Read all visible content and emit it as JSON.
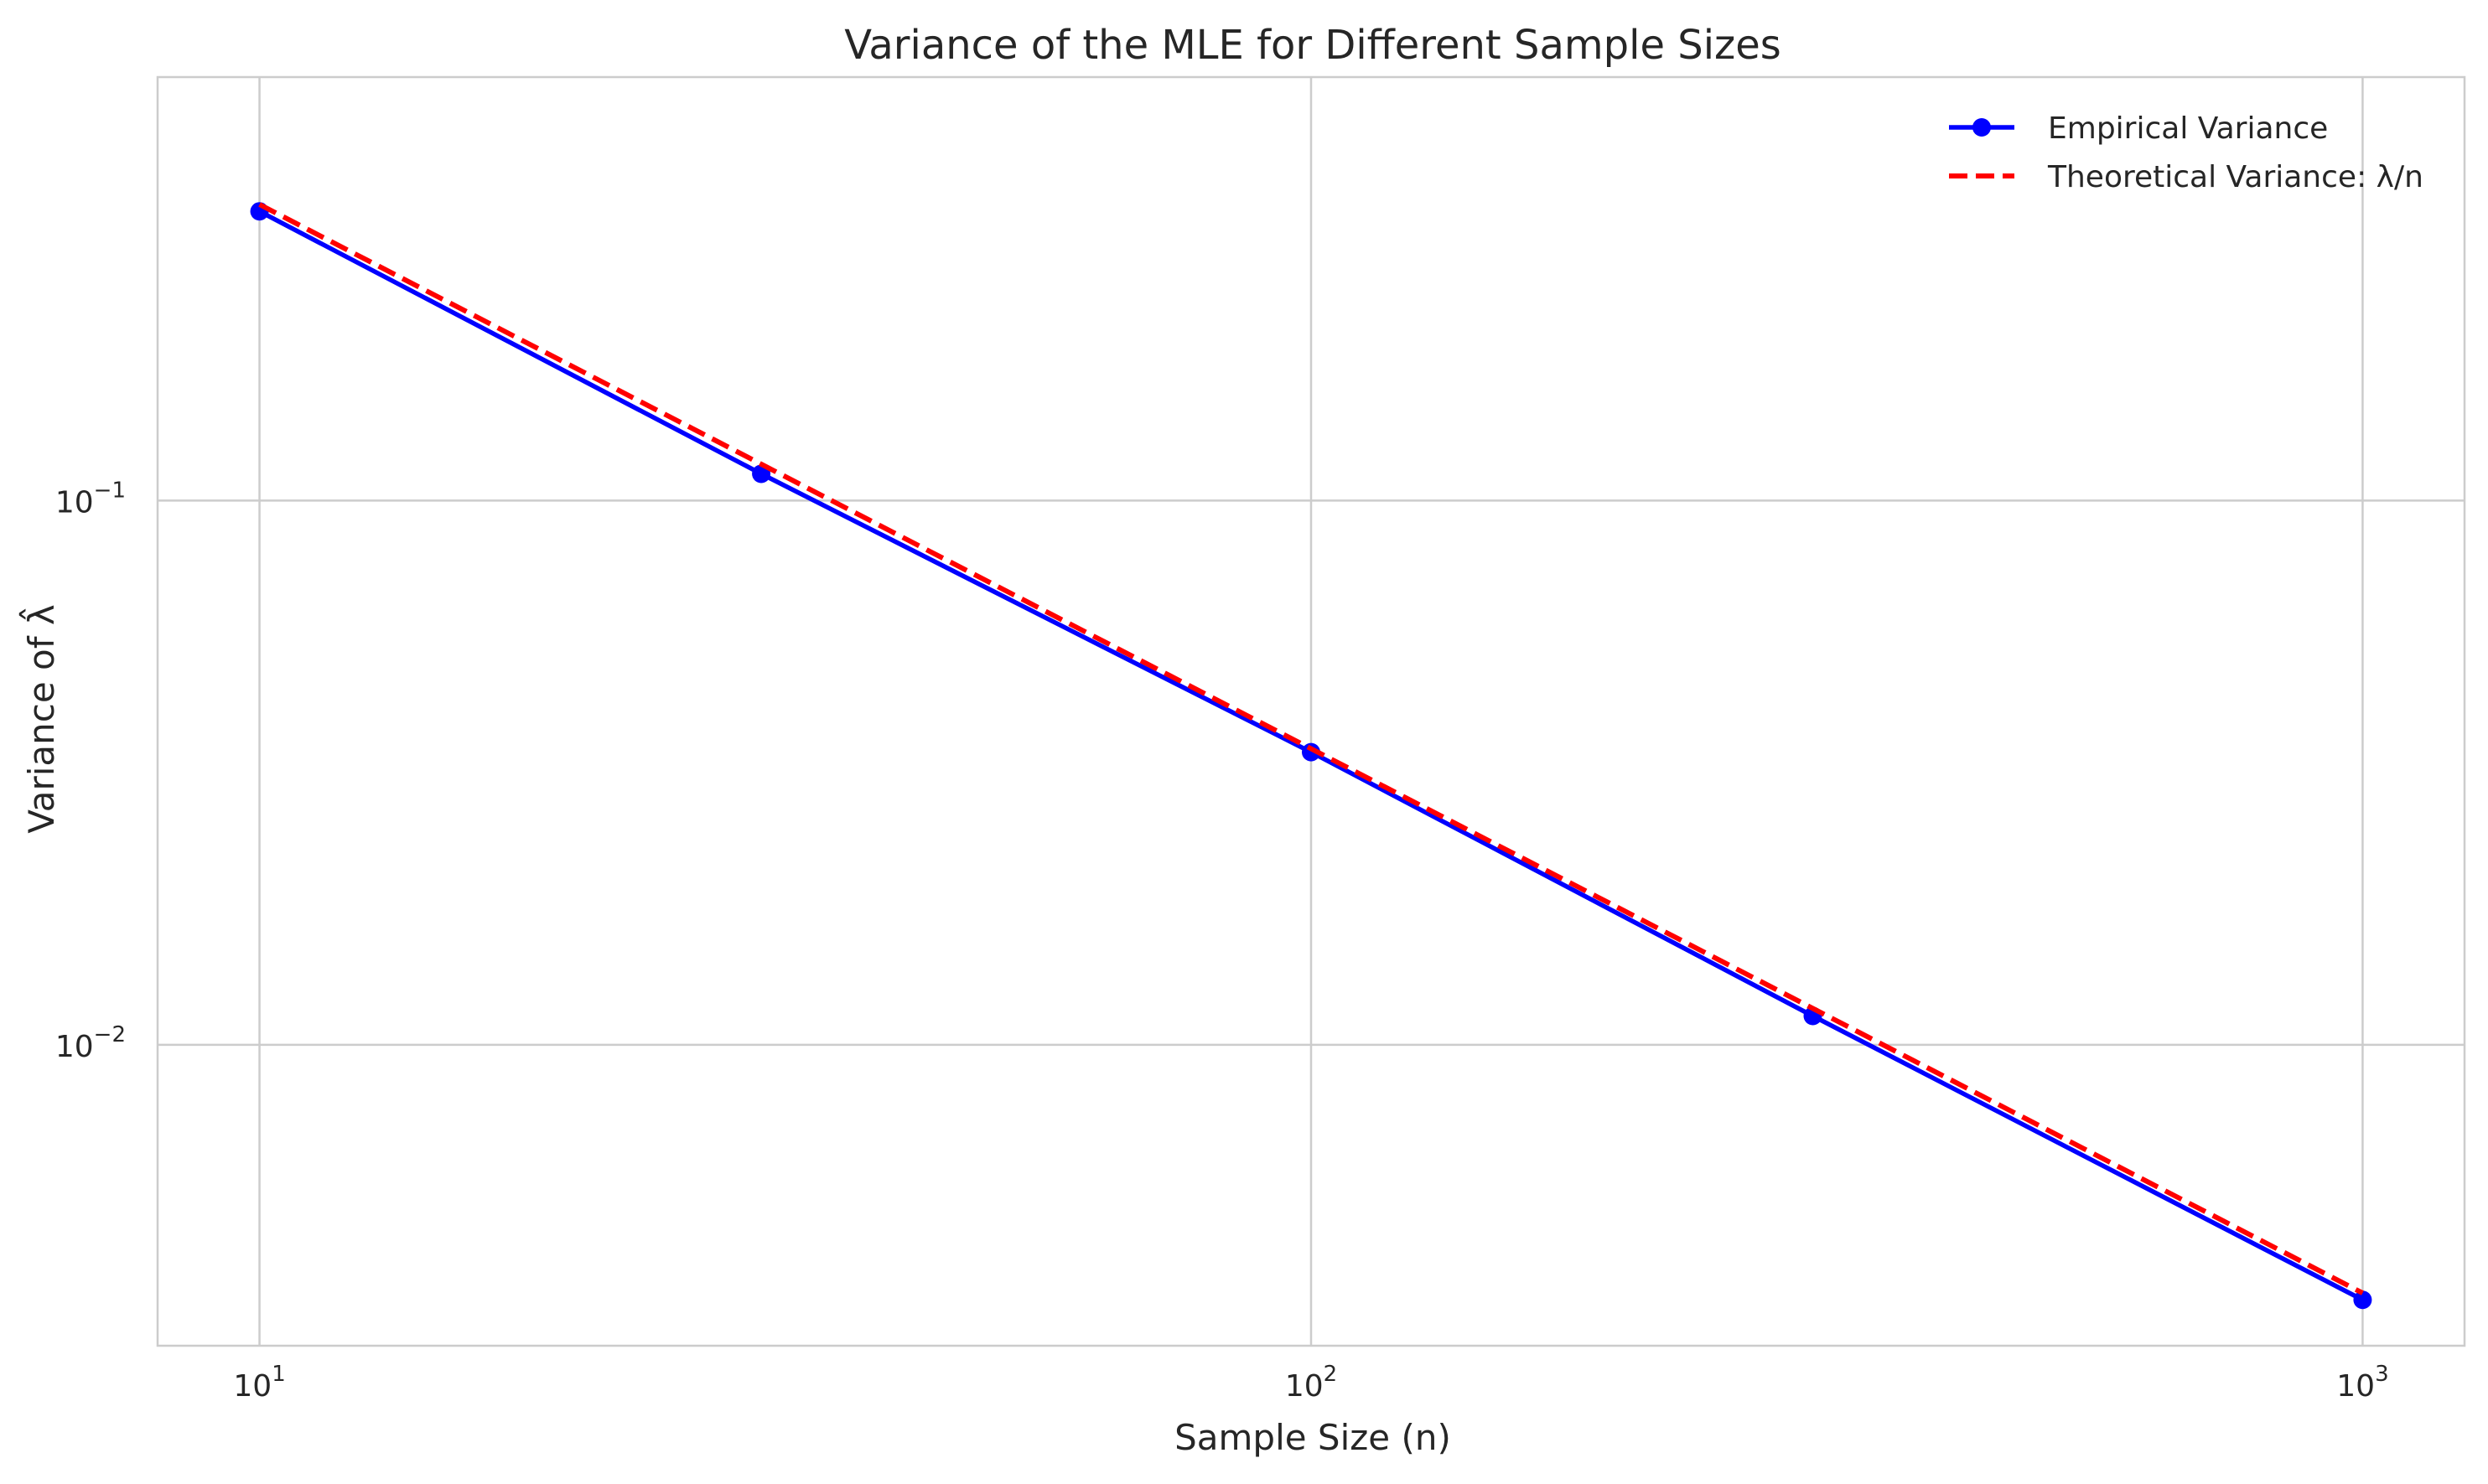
{
  "chart_data": {
    "type": "line",
    "title": "Variance of the MLE for Different Sample Sizes",
    "xlabel": "Sample Size (n)",
    "ylabel": "Variance of λ̂",
    "xscale": "log",
    "yscale": "log",
    "xlim": [
      8.0,
      1250
    ],
    "ylim": [
      0.0028,
      0.6
    ],
    "grid": true,
    "legend_position": "top-right",
    "x_ticks": [
      {
        "value": 10,
        "base": "10",
        "exp": "1"
      },
      {
        "value": 100,
        "base": "10",
        "exp": "2"
      },
      {
        "value": 1000,
        "base": "10",
        "exp": "3"
      }
    ],
    "y_ticks": [
      {
        "value": 0.1,
        "base": "10",
        "exp": "−1"
      },
      {
        "value": 0.01,
        "base": "10",
        "exp": "−2"
      }
    ],
    "series": [
      {
        "name": "Empirical Variance",
        "color": "#0000ff",
        "style": "solid",
        "marker": "circle",
        "x": [
          10,
          30,
          100,
          300,
          1000
        ],
        "y": [
          0.34,
          0.112,
          0.0345,
          0.0113,
          0.0034
        ]
      },
      {
        "name": "Theoretical Variance: λ/n",
        "color": "#ff0000",
        "style": "dashed",
        "marker": "none",
        "x": [
          10,
          30,
          100,
          300,
          1000
        ],
        "y": [
          0.35,
          0.1167,
          0.035,
          0.01167,
          0.0035
        ]
      }
    ]
  }
}
